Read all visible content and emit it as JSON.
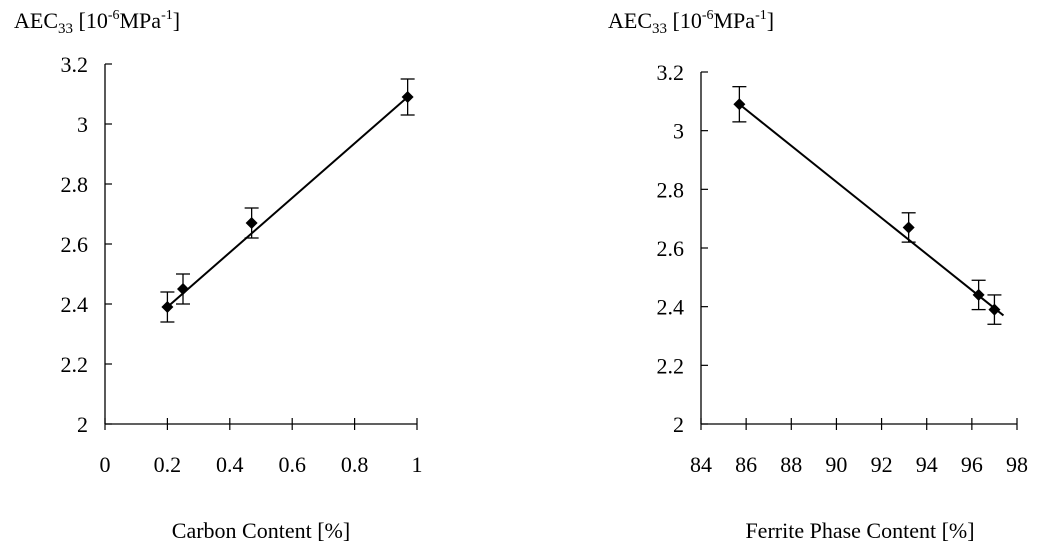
{
  "chart_data": [
    {
      "type": "scatter",
      "title": "",
      "ylabel": {
        "base": "AEC",
        "sub": "33",
        "unit_open": " [10",
        "exp1": "-6",
        "unit_mid": "MPa",
        "exp2": "-1",
        "unit_close": "]"
      },
      "xlabel": "Carbon Content [%]",
      "xlim": [
        0,
        1
      ],
      "ylim": [
        2,
        3.2
      ],
      "x_ticks": [
        "0",
        "0.2",
        "0.4",
        "0.6",
        "0.8",
        "1"
      ],
      "y_ticks": [
        "2",
        "2.2",
        "2.4",
        "2.6",
        "2.8",
        "3",
        "3.2"
      ],
      "grid": false,
      "trendline": {
        "x": [
          0.2,
          0.97
        ],
        "y": [
          2.39,
          3.09
        ]
      },
      "series": [
        {
          "points": [
            {
              "x": 0.2,
              "y": 2.39,
              "err": 0.05
            },
            {
              "x": 0.25,
              "y": 2.45,
              "err": 0.05
            },
            {
              "x": 0.47,
              "y": 2.67,
              "err": 0.05
            },
            {
              "x": 0.97,
              "y": 3.09,
              "err": 0.06
            }
          ]
        }
      ]
    },
    {
      "type": "scatter",
      "title": "",
      "ylabel": {
        "base": "AEC",
        "sub": "33",
        "unit_open": " [10",
        "exp1": "-6",
        "unit_mid": "MPa",
        "exp2": "-1",
        "unit_close": "]"
      },
      "xlabel": "Ferrite Phase Content [%]",
      "xlim": [
        84,
        98
      ],
      "ylim": [
        2,
        3.2
      ],
      "x_ticks": [
        "84",
        "86",
        "88",
        "90",
        "92",
        "94",
        "96",
        "98"
      ],
      "y_ticks": [
        "2",
        "2.2",
        "2.4",
        "2.6",
        "2.8",
        "3",
        "3.2"
      ],
      "grid": false,
      "trendline": {
        "x": [
          85.7,
          97.4
        ],
        "y": [
          3.09,
          2.37
        ]
      },
      "series": [
        {
          "points": [
            {
              "x": 85.7,
              "y": 3.09,
              "err": 0.06
            },
            {
              "x": 93.2,
              "y": 2.67,
              "err": 0.05
            },
            {
              "x": 96.3,
              "y": 2.44,
              "err": 0.05
            },
            {
              "x": 97.0,
              "y": 2.39,
              "err": 0.05
            }
          ]
        }
      ]
    }
  ]
}
